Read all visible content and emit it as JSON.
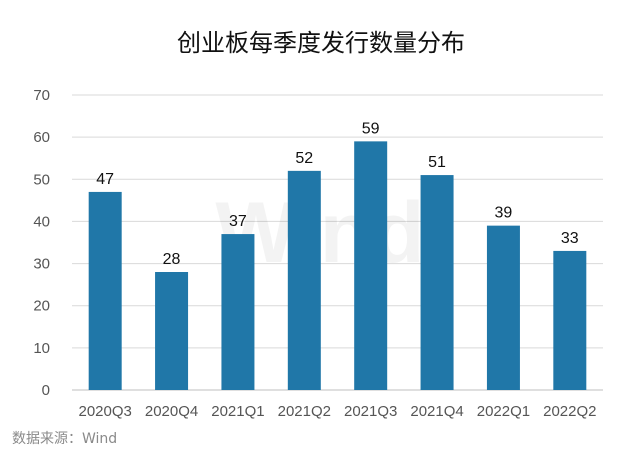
{
  "chart_data": {
    "type": "bar",
    "title": "创业板每季度发行数量分布",
    "categories": [
      "2020Q3",
      "2020Q4",
      "2021Q1",
      "2021Q2",
      "2021Q3",
      "2021Q4",
      "2022Q1",
      "2022Q2"
    ],
    "values": [
      47,
      28,
      37,
      52,
      59,
      51,
      39,
      33
    ],
    "xlabel": "",
    "ylabel": "",
    "ylim": [
      0,
      70
    ],
    "yticks": [
      0,
      10,
      20,
      30,
      40,
      50,
      60,
      70
    ],
    "grid": true,
    "legend": "none",
    "data_labels": true,
    "bar_color": "#2077a8",
    "gridline_color": "#d9d9d9"
  },
  "source_note": "数据来源：Wind",
  "watermark": "Wind"
}
